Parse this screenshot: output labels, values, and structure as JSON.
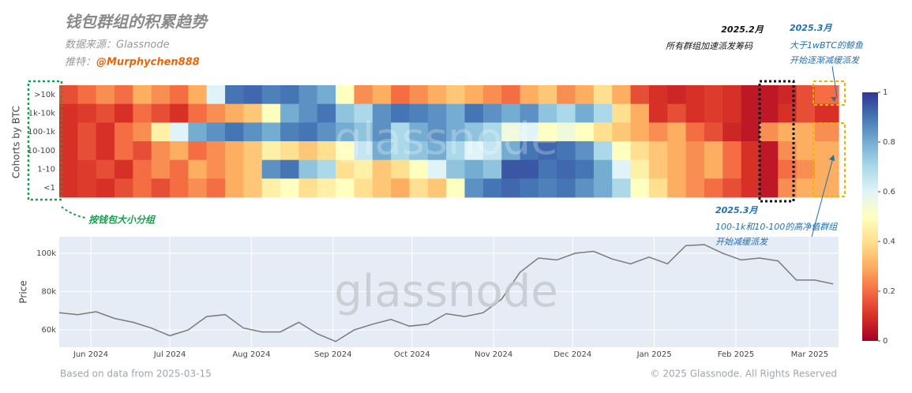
{
  "header": {
    "title": "钱包群组的积累趋势",
    "source": "数据来源：Glassnode",
    "twitter_label": "推特：",
    "twitter_handle": "@Murphychen888"
  },
  "annotations": {
    "feb_title": "2025.2月",
    "feb_text": "所有群组加速派发筹码",
    "whale_title": "2025.3月",
    "whale_line1": "大于1wBTC的鲸鱼",
    "whale_line2": "开始逐渐减缓派发",
    "mid_title": "2025.3月",
    "mid_line1": "100-1k和10-100的高净值群组",
    "mid_line2": "开始减缓派发",
    "group_note": "按钱包大小分组",
    "watermark": "glassnode"
  },
  "footer": {
    "left": "Based on data from 2025-03-15",
    "right": "© 2025 Glassnode. All Rights Reserved"
  },
  "chart_data": [
    {
      "type": "heatmap",
      "y_label": "Cohorts by BTC",
      "categories": [
        ">10k",
        "1k-10k",
        "100-1k",
        "10-100",
        "1-10",
        "<1"
      ],
      "x": [
        0,
        7,
        14,
        21,
        28,
        35,
        42,
        49,
        56,
        63,
        70,
        77,
        84,
        91,
        98,
        105,
        112,
        119,
        126,
        133,
        140,
        147,
        154,
        161,
        168,
        175,
        182,
        189,
        196,
        203,
        210,
        217,
        224,
        231,
        238,
        245,
        252,
        259,
        266,
        273,
        280,
        287
      ],
      "xlim": [
        0,
        296
      ],
      "colorscale": [
        [
          0,
          "#a50026"
        ],
        [
          0.1,
          "#d73027"
        ],
        [
          0.2,
          "#f46d43"
        ],
        [
          0.3,
          "#fdae61"
        ],
        [
          0.4,
          "#fee090"
        ],
        [
          0.5,
          "#ffffbf"
        ],
        [
          0.6,
          "#e0f3f8"
        ],
        [
          0.7,
          "#abd9e9"
        ],
        [
          0.8,
          "#74add1"
        ],
        [
          0.9,
          "#4575b4"
        ],
        [
          1,
          "#313695"
        ]
      ],
      "zlim": [
        0,
        1
      ],
      "colorbar_ticks": [
        0,
        0.2,
        0.4,
        0.6,
        0.8,
        1
      ],
      "z": [
        [
          0.15,
          0.2,
          0.25,
          0.2,
          0.3,
          0.25,
          0.2,
          0.3,
          0.6,
          0.9,
          0.92,
          0.88,
          0.9,
          0.85,
          0.8,
          0.5,
          0.25,
          0.3,
          0.2,
          0.25,
          0.3,
          0.35,
          0.3,
          0.25,
          0.2,
          0.3,
          0.35,
          0.25,
          0.3,
          0.4,
          0.3,
          0.15,
          0.1,
          0.08,
          0.1,
          0.12,
          0.1,
          0.05,
          0.05,
          0.08,
          0.15,
          0.2
        ],
        [
          0.1,
          0.12,
          0.15,
          0.1,
          0.2,
          0.15,
          0.1,
          0.2,
          0.25,
          0.3,
          0.35,
          0.5,
          0.8,
          0.85,
          0.9,
          0.75,
          0.7,
          0.85,
          0.9,
          0.88,
          0.85,
          0.8,
          0.9,
          0.85,
          0.8,
          0.85,
          0.75,
          0.7,
          0.8,
          0.7,
          0.4,
          0.3,
          0.1,
          0.15,
          0.1,
          0.12,
          0.1,
          0.05,
          0.05,
          0.1,
          0.15,
          0.1
        ],
        [
          0.1,
          0.15,
          0.1,
          0.2,
          0.25,
          0.45,
          0.6,
          0.8,
          0.85,
          0.9,
          0.85,
          0.8,
          0.88,
          0.9,
          0.85,
          0.8,
          0.75,
          0.85,
          0.7,
          0.8,
          0.85,
          0.8,
          0.75,
          0.7,
          0.55,
          0.6,
          0.5,
          0.55,
          0.5,
          0.4,
          0.35,
          0.3,
          0.25,
          0.3,
          0.2,
          0.15,
          0.08,
          0.05,
          0.25,
          0.3,
          0.3,
          0.25
        ],
        [
          0.1,
          0.15,
          0.1,
          0.2,
          0.15,
          0.25,
          0.3,
          0.2,
          0.25,
          0.3,
          0.35,
          0.45,
          0.4,
          0.35,
          0.4,
          0.5,
          0.65,
          0.8,
          0.7,
          0.75,
          0.8,
          0.7,
          0.6,
          0.65,
          0.8,
          0.9,
          0.92,
          0.9,
          0.85,
          0.7,
          0.5,
          0.4,
          0.35,
          0.3,
          0.25,
          0.3,
          0.2,
          0.1,
          0.05,
          0.25,
          0.3,
          0.3
        ],
        [
          0.1,
          0.12,
          0.15,
          0.1,
          0.2,
          0.25,
          0.2,
          0.3,
          0.25,
          0.3,
          0.35,
          0.85,
          0.9,
          0.75,
          0.7,
          0.4,
          0.45,
          0.35,
          0.4,
          0.5,
          0.6,
          0.75,
          0.8,
          0.75,
          0.95,
          0.95,
          0.9,
          0.92,
          0.9,
          0.8,
          0.6,
          0.45,
          0.35,
          0.3,
          0.25,
          0.3,
          0.2,
          0.1,
          0.05,
          0.2,
          0.25,
          0.3
        ],
        [
          0.1,
          0.12,
          0.1,
          0.15,
          0.2,
          0.15,
          0.2,
          0.25,
          0.2,
          0.3,
          0.35,
          0.45,
          0.5,
          0.4,
          0.45,
          0.5,
          0.4,
          0.35,
          0.3,
          0.4,
          0.35,
          0.5,
          0.85,
          0.9,
          0.92,
          0.9,
          0.88,
          0.9,
          0.85,
          0.8,
          0.7,
          0.5,
          0.4,
          0.3,
          0.25,
          0.2,
          0.15,
          0.1,
          0.05,
          0.25,
          0.3,
          0.3
        ]
      ]
    },
    {
      "type": "line",
      "y_label": "Price",
      "color": "#7a7a7a",
      "grid": true,
      "x": [
        0,
        7,
        14,
        21,
        28,
        35,
        42,
        49,
        56,
        63,
        70,
        77,
        84,
        91,
        98,
        105,
        112,
        119,
        126,
        133,
        140,
        147,
        154,
        161,
        168,
        175,
        182,
        189,
        196,
        203,
        210,
        217,
        224,
        231,
        238,
        245,
        252,
        259,
        266,
        273,
        280,
        287,
        294
      ],
      "values": [
        69000,
        68000,
        69500,
        66000,
        64000,
        61000,
        57000,
        60000,
        67000,
        68000,
        61000,
        59000,
        59000,
        64000,
        58000,
        54000,
        60000,
        63000,
        65500,
        62000,
        63000,
        68500,
        67000,
        69000,
        76000,
        90000,
        97500,
        96500,
        100000,
        101000,
        97000,
        94500,
        98000,
        94500,
        104000,
        104500,
        100000,
        96500,
        97500,
        96000,
        86000,
        86000,
        84000
      ],
      "xlim": [
        0,
        296
      ],
      "ylim": [
        51000,
        108600
      ],
      "xticks": [
        {
          "value": 12,
          "label": "Jun 2024"
        },
        {
          "value": 42,
          "label": "Jul 2024"
        },
        {
          "value": 73,
          "label": "Aug 2024"
        },
        {
          "value": 104,
          "label": "Sep 2024"
        },
        {
          "value": 134,
          "label": "Oct 2024"
        },
        {
          "value": 165,
          "label": "Nov 2024"
        },
        {
          "value": 195,
          "label": "Dec 2024"
        },
        {
          "value": 226,
          "label": "Jan 2025"
        },
        {
          "value": 257,
          "label": "Feb 2025"
        },
        {
          "value": 285,
          "label": "Mar 2025"
        }
      ],
      "yticks": [
        {
          "value": 60000,
          "label": "60k"
        },
        {
          "value": 80000,
          "label": "80k"
        },
        {
          "value": 100000,
          "label": "100k"
        }
      ]
    }
  ]
}
